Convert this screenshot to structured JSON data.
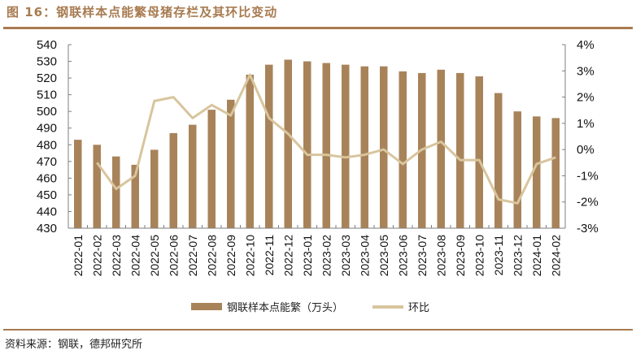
{
  "header": {
    "title": "图 16：钢联样本点能繁母猪存栏及其环比变动"
  },
  "footer": {
    "source": "资料来源：钢联，德邦研究所"
  },
  "legend": {
    "bar_label": "钢联样本点能繁（万头）",
    "line_label": "环比"
  },
  "colors": {
    "bar": "#a8835a",
    "line": "#d8c59d",
    "title": "#a87b50",
    "axis": "#7f7f7f"
  },
  "chart_data": {
    "type": "bar+line",
    "title": "图 16：钢联样本点能繁母猪存栏及其环比变动",
    "xlabel": "",
    "ylabel_left": "",
    "ylabel_right": "",
    "categories": [
      "2022-01",
      "2022-02",
      "2022-03",
      "2022-04",
      "2022-05",
      "2022-06",
      "2022-07",
      "2022-08",
      "2022-09",
      "2022-10",
      "2022-11",
      "2022-12",
      "2023-01",
      "2023-02",
      "2023-03",
      "2023-04",
      "2023-05",
      "2023-06",
      "2023-07",
      "2023-08",
      "2023-09",
      "2023-10",
      "2023-11",
      "2023-12",
      "2024-01",
      "2024-02"
    ],
    "series": [
      {
        "name": "钢联样本点能繁（万头）",
        "type": "bar",
        "axis": "left",
        "values": [
          483,
          480,
          473,
          468,
          477,
          487,
          492,
          501,
          507,
          522,
          528,
          531,
          530,
          529,
          528,
          527,
          527,
          524,
          523,
          525,
          523,
          521,
          511,
          500,
          497,
          496
        ]
      },
      {
        "name": "环比",
        "type": "line",
        "axis": "right",
        "unit": "%",
        "values": [
          null,
          -0.5,
          -1.5,
          -1.0,
          1.85,
          2.0,
          1.2,
          1.7,
          1.3,
          2.85,
          1.2,
          0.6,
          -0.2,
          -0.2,
          -0.3,
          -0.2,
          0.0,
          -0.55,
          0.0,
          0.3,
          -0.4,
          -0.4,
          -1.9,
          -2.05,
          -0.55,
          -0.3
        ]
      }
    ],
    "left_axis": {
      "ylim": [
        430,
        540
      ],
      "ticks": [
        "540",
        "530",
        "520",
        "510",
        "500",
        "490",
        "480",
        "470",
        "460",
        "450",
        "440",
        "430"
      ]
    },
    "right_axis": {
      "ylim": [
        -3,
        4
      ],
      "ticks": [
        "4%",
        "3%",
        "2%",
        "1%",
        "0%",
        "-1%",
        "-2%",
        "-3%"
      ]
    },
    "grid": false,
    "legend_position": "bottom"
  }
}
